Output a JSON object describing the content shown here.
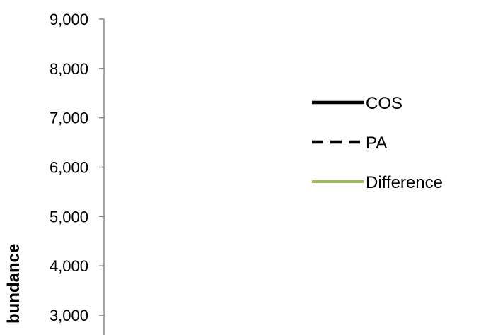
{
  "chart_data": {
    "type": "line",
    "title": "",
    "xlabel": "",
    "ylabel": "Abundance",
    "ylabel_visible_text": "bundance",
    "ylim": [
      3000,
      9000
    ],
    "y_ticks": [
      {
        "value": 9000,
        "label": "9,000"
      },
      {
        "value": 8000,
        "label": "8,000"
      },
      {
        "value": 7000,
        "label": "7,000"
      },
      {
        "value": 6000,
        "label": "6,000"
      },
      {
        "value": 5000,
        "label": "5,000"
      },
      {
        "value": 4000,
        "label": "4,000"
      },
      {
        "value": 3000,
        "label": "3,000"
      }
    ],
    "grid": false,
    "legend_position": "right",
    "series": [
      {
        "name": "COS",
        "line_style": "solid",
        "color": "#000000",
        "values": []
      },
      {
        "name": "PA",
        "line_style": "dashed",
        "color": "#000000",
        "values": []
      },
      {
        "name": "Difference",
        "line_style": "solid",
        "color": "#9BBB59",
        "values": []
      }
    ]
  }
}
